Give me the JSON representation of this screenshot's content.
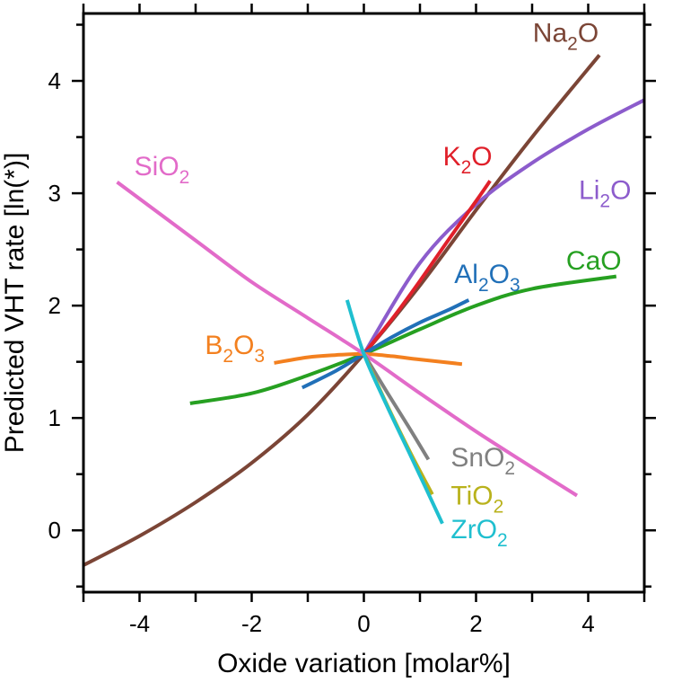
{
  "chart_data": {
    "type": "line",
    "title": "",
    "xlabel": "Oxide variation [molar%]",
    "ylabel": "Predicted VHT rate [ln(*)]",
    "xlim": [
      -5,
      5
    ],
    "ylim": [
      -0.55,
      4.6
    ],
    "xticks": [
      -4,
      -2,
      0,
      2,
      4
    ],
    "xtick_labels": [
      "-4",
      "-2",
      "0",
      "2",
      "4"
    ],
    "yticks": [
      0,
      1,
      2,
      3,
      4
    ],
    "ytick_labels": [
      "0",
      "1",
      "2",
      "3",
      "4"
    ],
    "grid": false,
    "series": [
      {
        "name": "Na2O",
        "label_base": "Na",
        "label_sub": "2",
        "label_rest": "O",
        "color": "#7b4536",
        "x": [
          -5,
          -4,
          -3,
          -2,
          -1,
          0,
          1,
          2,
          3,
          4.2
        ],
        "y": [
          -0.31,
          -0.05,
          0.25,
          0.6,
          1.03,
          1.57,
          2.18,
          2.85,
          3.5,
          4.23
        ]
      },
      {
        "name": "Li2O",
        "label_base": "Li",
        "label_sub": "2",
        "label_rest": "O",
        "color": "#8c5ccc",
        "x": [
          0,
          1,
          2,
          3,
          4,
          5
        ],
        "y": [
          1.57,
          2.38,
          2.9,
          3.27,
          3.57,
          3.83
        ]
      },
      {
        "name": "K2O",
        "label_base": "K",
        "label_sub": "2",
        "label_rest": "O",
        "color": "#e0202a",
        "x": [
          0,
          0.5,
          1,
          1.5,
          2.0,
          2.25
        ],
        "y": [
          1.57,
          1.88,
          2.22,
          2.58,
          2.93,
          3.11
        ]
      },
      {
        "name": "CaO",
        "label_base": "CaO",
        "label_sub": "",
        "label_rest": "",
        "color": "#26a021",
        "x": [
          -3.1,
          -2,
          -1,
          0,
          1,
          2,
          3,
          4.5
        ],
        "y": [
          1.13,
          1.22,
          1.38,
          1.57,
          1.79,
          2.0,
          2.15,
          2.26
        ]
      },
      {
        "name": "Al2O3",
        "label_base": "Al",
        "label_sub": "2",
        "label_rest": "O",
        "label_sub2": "3",
        "color": "#2170b8",
        "x": [
          -1.1,
          -0.5,
          0,
          0.5,
          1.0,
          1.5,
          1.87
        ],
        "y": [
          1.27,
          1.42,
          1.57,
          1.72,
          1.85,
          1.96,
          2.05
        ]
      },
      {
        "name": "B2O3",
        "label_base": "B",
        "label_sub": "2",
        "label_rest": "O",
        "label_sub2": "3",
        "color": "#f3801f",
        "x": [
          -1.6,
          -1,
          -0.5,
          0,
          0.5,
          1,
          1.75
        ],
        "y": [
          1.49,
          1.54,
          1.56,
          1.57,
          1.55,
          1.52,
          1.48
        ]
      },
      {
        "name": "SiO2",
        "label_base": "SiO",
        "label_sub": "2",
        "label_rest": "",
        "color": "#e26bc9",
        "x": [
          -4.4,
          -3,
          -2,
          -1,
          0,
          1,
          2,
          3,
          3.8
        ],
        "y": [
          3.1,
          2.58,
          2.21,
          1.89,
          1.57,
          1.22,
          0.88,
          0.56,
          0.31
        ]
      },
      {
        "name": "SnO2",
        "label_base": "SnO",
        "label_sub": "2",
        "label_rest": "",
        "color": "#808080",
        "x": [
          0,
          0.4,
          0.8,
          1.15
        ],
        "y": [
          1.57,
          1.24,
          0.92,
          0.63
        ]
      },
      {
        "name": "TiO2",
        "label_base": "TiO",
        "label_sub": "2",
        "label_rest": "",
        "color": "#b9b21c",
        "x": [
          0,
          0.4,
          0.8,
          1.22
        ],
        "y": [
          1.57,
          1.13,
          0.72,
          0.32
        ]
      },
      {
        "name": "ZrO2",
        "label_base": "ZrO",
        "label_sub": "2",
        "label_rest": "",
        "color": "#1fbfcf",
        "x": [
          -0.3,
          0,
          0.4,
          0.8,
          1.1,
          1.4
        ],
        "y": [
          2.05,
          1.57,
          1.12,
          0.7,
          0.38,
          0.06
        ]
      }
    ]
  }
}
